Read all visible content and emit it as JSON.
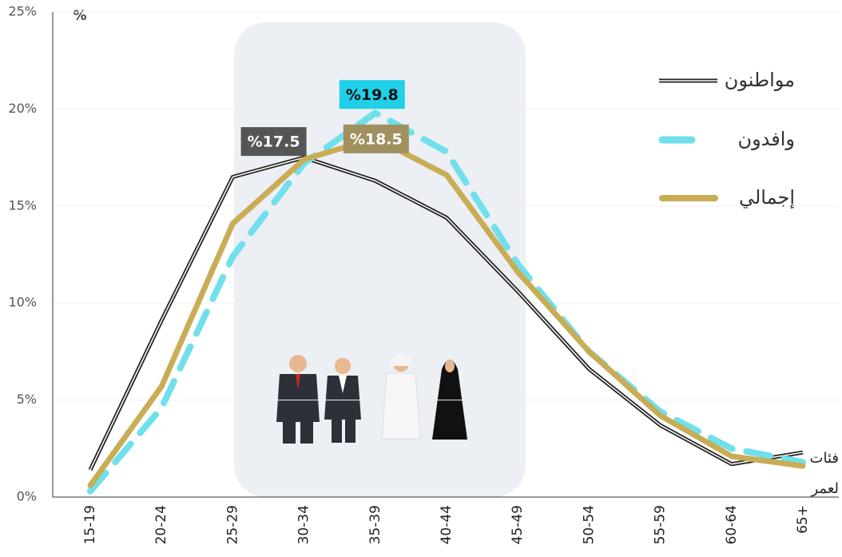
{
  "chart_data": {
    "type": "line",
    "unit_label": "%",
    "x_label": [
      "فئات",
      "لعمر"
    ],
    "categories": [
      "15-19",
      "20-24",
      "25-29",
      "30-34",
      "35-39",
      "40-44",
      "45-49",
      "50-54",
      "55-59",
      "60-64",
      "65+"
    ],
    "ylim": [
      0,
      25
    ],
    "yticks": [
      {
        "value": 0,
        "label": "0%"
      },
      {
        "value": 5,
        "label": "5%"
      },
      {
        "value": 10,
        "label": "10%"
      },
      {
        "value": 15,
        "label": "15%"
      },
      {
        "value": 20,
        "label": "20%"
      },
      {
        "value": 25,
        "label": "25%"
      }
    ],
    "grid": true,
    "series": [
      {
        "name": "مواطنون",
        "color": "#222222",
        "style": "double",
        "values": [
          1.4,
          9.1,
          16.5,
          17.5,
          16.3,
          14.4,
          10.6,
          6.6,
          3.7,
          1.7,
          2.3
        ],
        "value_labels": [
          null,
          null,
          null,
          "%17.5",
          null,
          null,
          null,
          null,
          null,
          null,
          null
        ],
        "label_color": "#555555"
      },
      {
        "name": "وافدون",
        "color": "#6fe0ec",
        "style": "dashed",
        "values": [
          0.3,
          4.6,
          12.4,
          17.2,
          19.8,
          17.8,
          12.0,
          7.5,
          4.4,
          2.5,
          1.8
        ],
        "value_labels": [
          null,
          null,
          null,
          null,
          "%19.8",
          null,
          null,
          null,
          null,
          null,
          null
        ],
        "label_color": "#1fd0e8"
      },
      {
        "name": "إجمالي",
        "color": "#c9ad56",
        "style": "solid",
        "values": [
          0.6,
          5.7,
          14.1,
          17.4,
          18.5,
          16.6,
          11.6,
          7.5,
          4.2,
          2.1,
          1.6
        ],
        "value_labels": [
          null,
          null,
          null,
          null,
          "%18.5",
          null,
          null,
          null,
          null,
          null,
          null
        ],
        "label_color": "#a09060"
      }
    ]
  }
}
